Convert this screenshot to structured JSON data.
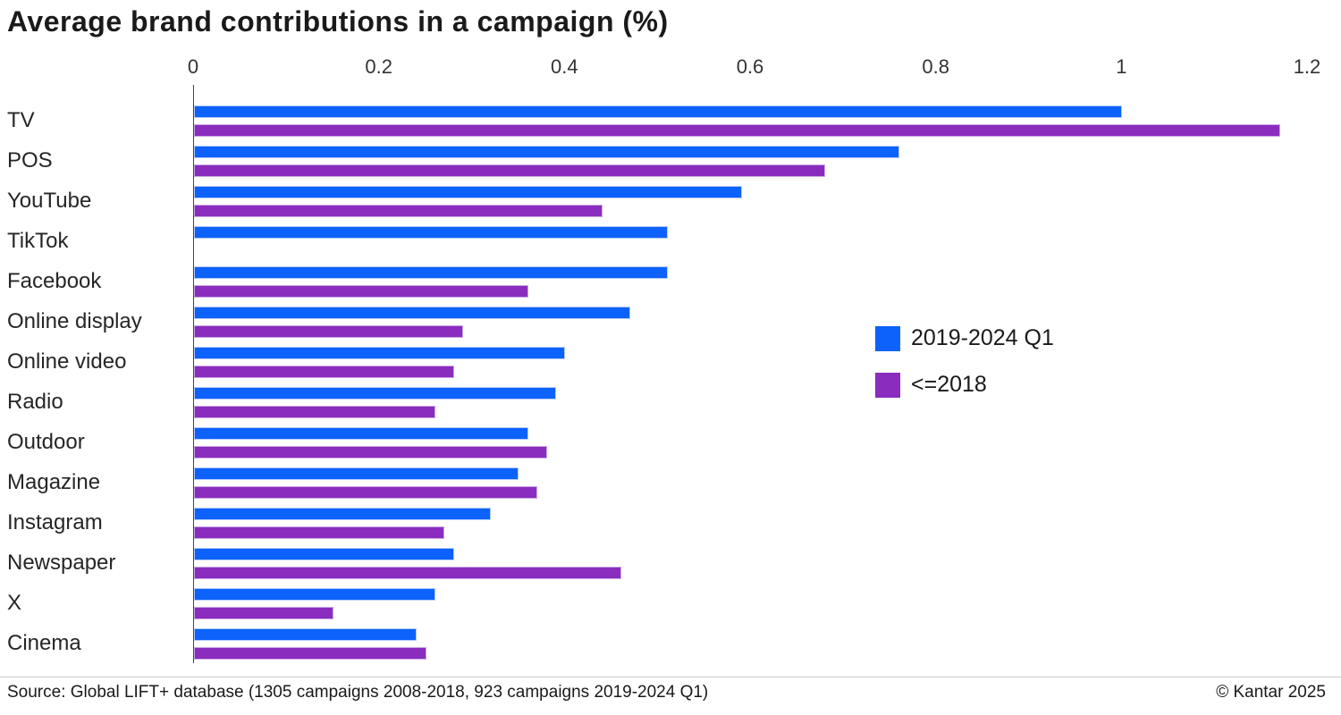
{
  "title": "Average brand contributions in a campaign (%)",
  "footer": {
    "source": "Source: Global LIFT+ database (1305 campaigns 2008-2018, 923 campaigns 2019-2024 Q1)",
    "copyright": "© Kantar 2025"
  },
  "legend": {
    "items": [
      {
        "label": "2019-2024 Q1",
        "color": "#0c62fb"
      },
      {
        "label": "<=2018",
        "color": "#8a2cbe"
      }
    ],
    "position": "middle-right"
  },
  "colors": {
    "series_blue": "#0c62fb",
    "series_purple": "#8a2cbe",
    "text": "#1a1a1a",
    "axis": "#444444"
  },
  "chart_data": {
    "type": "bar",
    "orientation": "horizontal",
    "title": "Average brand contributions in a campaign (%)",
    "xlabel": "",
    "ylabel": "",
    "xlim": [
      0,
      1.2
    ],
    "xticks": [
      0,
      0.2,
      0.4,
      0.6,
      0.8,
      1,
      1.2
    ],
    "grid": false,
    "legend_position": "middle-right",
    "categories": [
      "TV",
      "POS",
      "YouTube",
      "TikTok",
      "Facebook",
      "Online display",
      "Online video",
      "Radio",
      "Outdoor",
      "Magazine",
      "Instagram",
      "Newspaper",
      "X",
      "Cinema"
    ],
    "series": [
      {
        "name": "2019-2024 Q1",
        "color": "#0c62fb",
        "values": [
          1.0,
          0.76,
          0.59,
          0.51,
          0.51,
          0.47,
          0.4,
          0.39,
          0.36,
          0.35,
          0.32,
          0.28,
          0.26,
          0.24
        ]
      },
      {
        "name": "<=2018",
        "color": "#8a2cbe",
        "values": [
          1.17,
          0.68,
          0.44,
          null,
          0.36,
          0.29,
          0.28,
          0.26,
          0.38,
          0.37,
          0.27,
          0.46,
          0.15,
          0.25
        ]
      }
    ]
  }
}
